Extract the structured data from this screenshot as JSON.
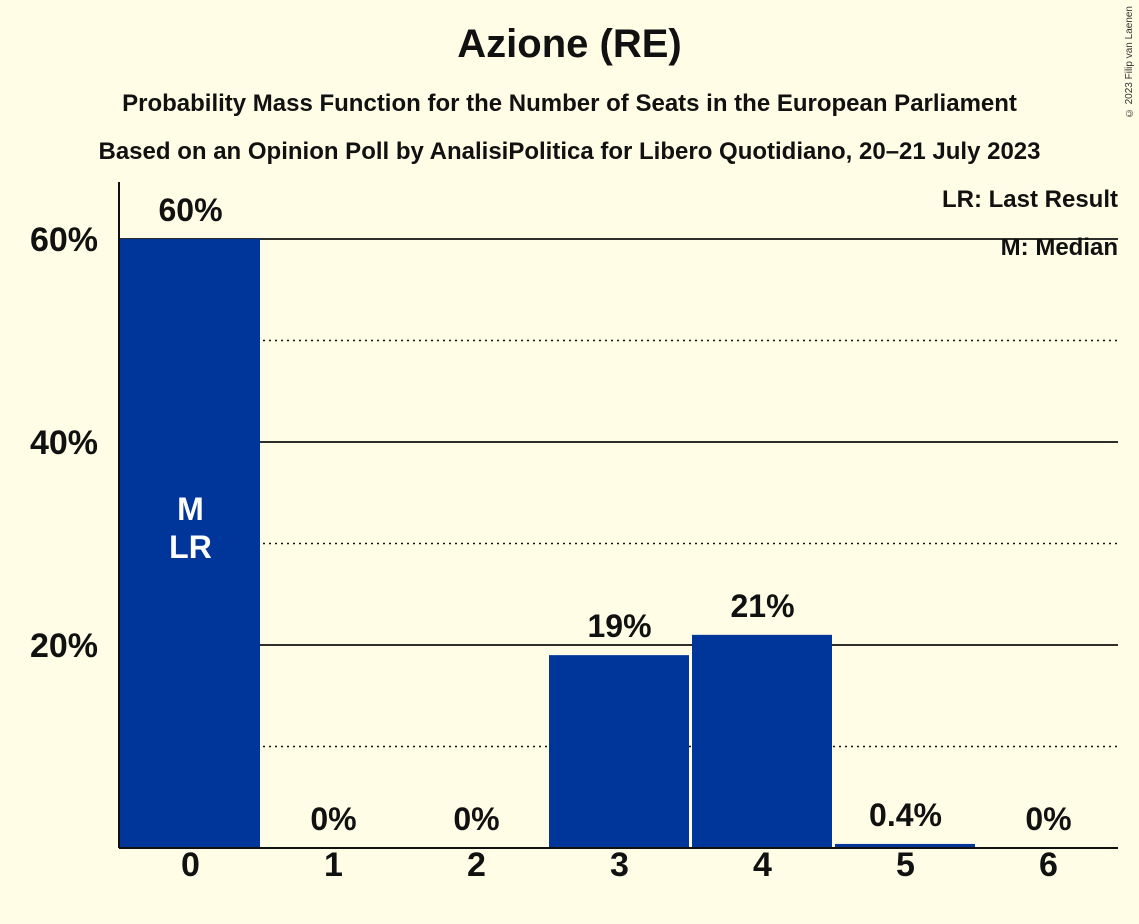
{
  "chart_data": {
    "type": "bar",
    "title": "Azione (RE)",
    "subtitle": "Probability Mass Function for the Number of Seats in the European Parliament",
    "subtitle2": "Based on an Opinion Poll by AnalisiPolitica for Libero Quotidiano, 20–21 July 2023",
    "categories": [
      "0",
      "1",
      "2",
      "3",
      "4",
      "5",
      "6"
    ],
    "values": [
      60,
      0,
      0,
      19,
      21,
      0.4,
      0
    ],
    "value_labels": [
      "60%",
      "0%",
      "0%",
      "19%",
      "21%",
      "0.4%",
      "0%"
    ],
    "ylim": [
      0,
      65
    ],
    "yticks": [
      20,
      40,
      60
    ],
    "ytick_labels": [
      "20%",
      "40%",
      "60%"
    ],
    "minor_gridlines": [
      10,
      30,
      50
    ],
    "bar_annotations": [
      {
        "category": "0",
        "lines": [
          "M",
          "LR"
        ]
      }
    ],
    "legend": [
      "LR: Last Result",
      "M: Median"
    ],
    "legend_position": "top-right",
    "bar_color": "#003699"
  },
  "copyright": "© 2023 Filip van Laenen"
}
